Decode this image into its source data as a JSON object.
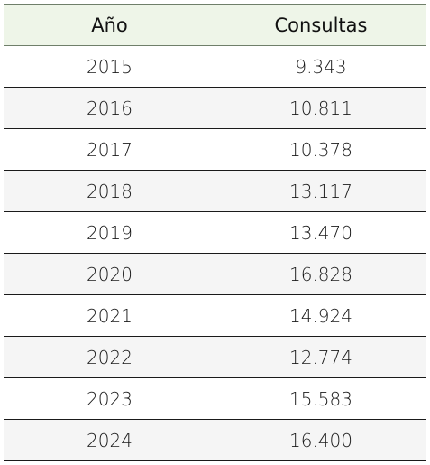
{
  "table": {
    "headers": {
      "year": "Año",
      "consultas": "Consultas"
    },
    "rows": [
      {
        "year": "2015",
        "consultas": "9.343"
      },
      {
        "year": "2016",
        "consultas": "10.811"
      },
      {
        "year": "2017",
        "consultas": "10.378"
      },
      {
        "year": "2018",
        "consultas": "13.117"
      },
      {
        "year": "2019",
        "consultas": "13.470"
      },
      {
        "year": "2020",
        "consultas": "16.828"
      },
      {
        "year": "2021",
        "consultas": "14.924"
      },
      {
        "year": "2022",
        "consultas": "12.774"
      },
      {
        "year": "2023",
        "consultas": "15.583"
      },
      {
        "year": "2024",
        "consultas": "16.400"
      }
    ]
  },
  "colors": {
    "header_bg": "#eef5e8",
    "stripe_bg": "#f5f5f5",
    "rule": "#1a1a1a"
  }
}
